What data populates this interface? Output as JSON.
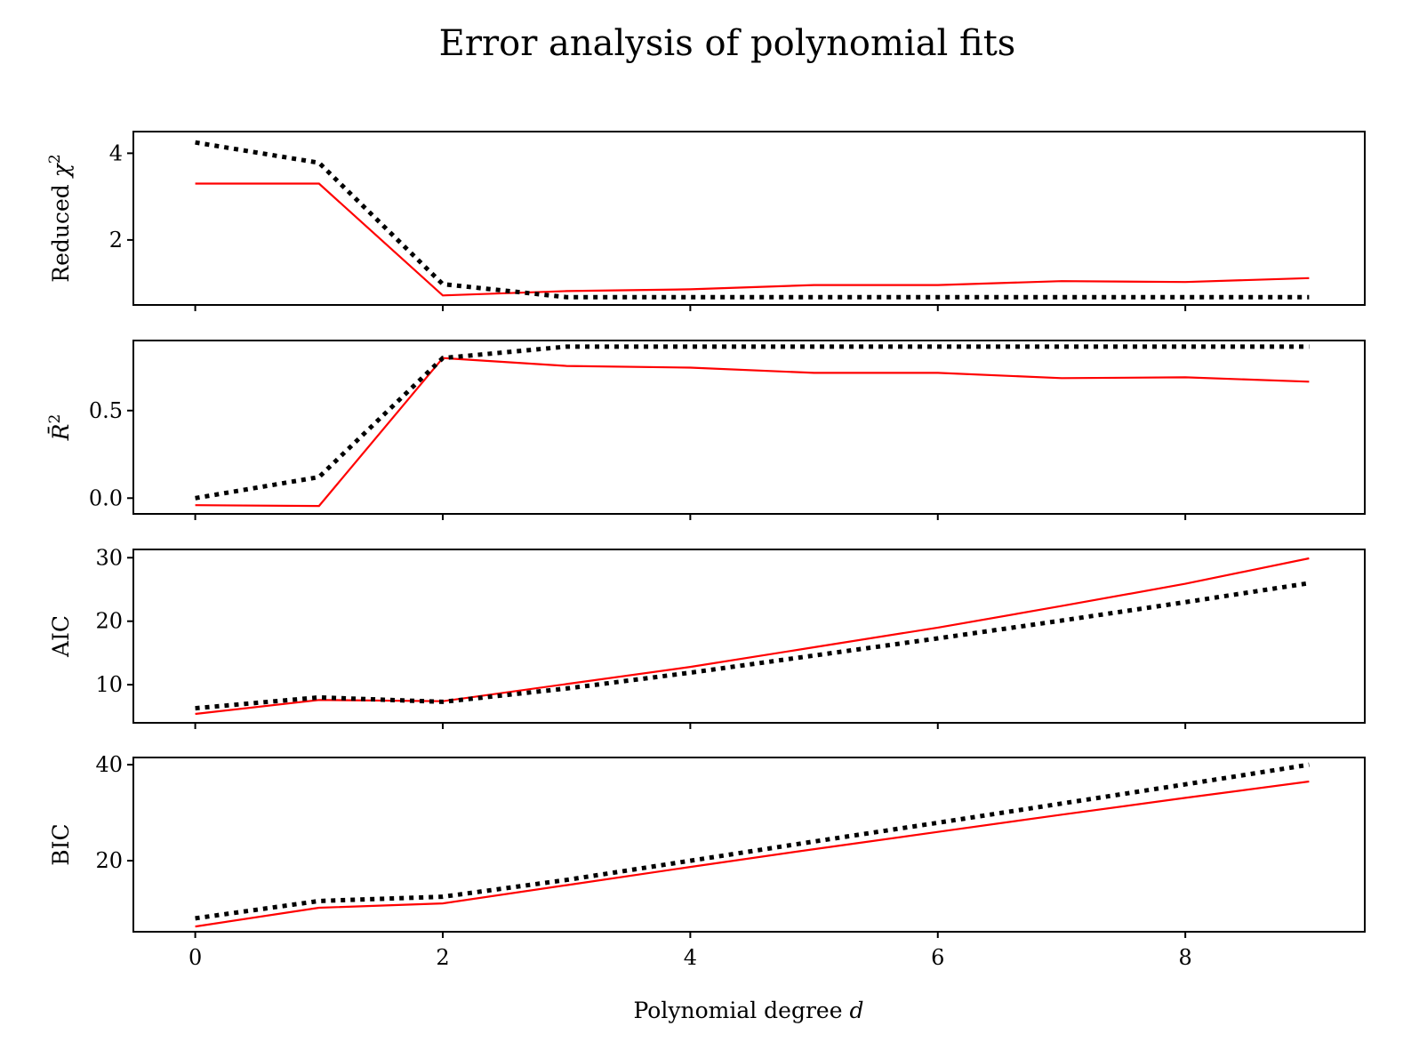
{
  "chart_data": {
    "type": "line",
    "title": "Error analysis of polynomial fits",
    "xlabel_text": "Polynomial degree ",
    "xlabel_var": "d",
    "x": [
      0,
      1,
      2,
      3,
      4,
      5,
      6,
      7,
      8,
      9
    ],
    "xlim": [
      -0.5,
      9.45
    ],
    "xticks": [
      "0",
      "2",
      "4",
      "6",
      "8"
    ],
    "xtick_values": [
      0,
      2,
      4,
      6,
      8
    ],
    "colors": {
      "solid": "#ff0000",
      "dotted": "#000000"
    },
    "panels": [
      {
        "ylabel_text": "Reduced ",
        "ylabel_var": "χ",
        "ylabel_sup": "2",
        "ylim": [
          0.5,
          4.5
        ],
        "yticks": [
          "2",
          "4"
        ],
        "ytick_values": [
          2,
          4
        ],
        "series": [
          {
            "style": "solid",
            "values": [
              3.3,
              3.3,
              0.72,
              0.82,
              0.86,
              0.96,
              0.96,
              1.05,
              1.03,
              1.12
            ]
          },
          {
            "style": "dotted",
            "values": [
              4.25,
              3.78,
              0.98,
              0.68,
              0.68,
              0.68,
              0.68,
              0.68,
              0.68,
              0.68
            ]
          }
        ]
      },
      {
        "ylabel_text": "",
        "ylabel_var": "R̄",
        "ylabel_sup": "2",
        "ylim": [
          -0.09,
          0.9
        ],
        "yticks": [
          "0.0",
          "0.5"
        ],
        "ytick_values": [
          0.0,
          0.5
        ],
        "series": [
          {
            "style": "solid",
            "values": [
              -0.04,
              -0.045,
              0.8,
              0.755,
              0.745,
              0.715,
              0.715,
              0.685,
              0.69,
              0.665
            ]
          },
          {
            "style": "dotted",
            "values": [
              0.0,
              0.12,
              0.8,
              0.865,
              0.865,
              0.865,
              0.865,
              0.865,
              0.865,
              0.865
            ]
          }
        ]
      },
      {
        "ylabel_text": "AIC",
        "ylabel_var": "",
        "ylabel_sup": "",
        "ylim": [
          4,
          31.3
        ],
        "yticks": [
          "10",
          "20",
          "30"
        ],
        "ytick_values": [
          10,
          20,
          30
        ],
        "series": [
          {
            "style": "solid",
            "values": [
              5.4,
              7.6,
              7.4,
              10.1,
              12.8,
              15.9,
              19.0,
              22.4,
              25.9,
              29.9
            ]
          },
          {
            "style": "dotted",
            "values": [
              6.3,
              8.0,
              7.3,
              9.4,
              11.9,
              14.6,
              17.3,
              20.1,
              23.0,
              26.0
            ]
          }
        ]
      },
      {
        "ylabel_text": "BIC",
        "ylabel_var": "",
        "ylabel_sup": "",
        "ylim": [
          5.2,
          41.5
        ],
        "yticks": [
          "20",
          "40"
        ],
        "ytick_values": [
          20,
          40
        ],
        "series": [
          {
            "style": "solid",
            "values": [
              6.3,
              10.2,
              11.1,
              14.9,
              18.7,
              22.4,
              26.0,
              29.6,
              33.1,
              36.5
            ]
          },
          {
            "style": "dotted",
            "values": [
              8.0,
              11.6,
              12.5,
              16.0,
              20.0,
              24.0,
              27.9,
              31.9,
              35.9,
              40.0
            ]
          }
        ]
      }
    ]
  }
}
